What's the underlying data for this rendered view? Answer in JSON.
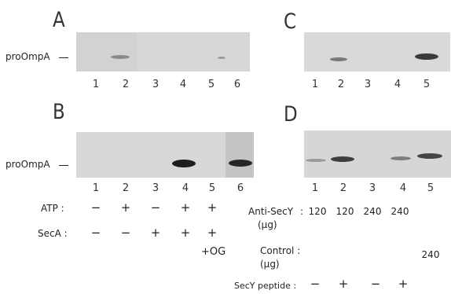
{
  "panels": {
    "A": {
      "label": "A",
      "lanes": [
        "1",
        "2",
        "3",
        "4",
        "5",
        "6"
      ]
    },
    "B": {
      "label": "B",
      "lanes": [
        "1",
        "2",
        "3",
        "4",
        "5",
        "6"
      ]
    },
    "C": {
      "label": "C",
      "lanes": [
        "1",
        "2",
        "3",
        "4",
        "5"
      ]
    },
    "D": {
      "label": "D",
      "lanes": [
        "1",
        "2",
        "3",
        "4",
        "5"
      ]
    }
  },
  "band_label": "proOmpA",
  "conditions_B": {
    "atp": {
      "label": "ATP :",
      "marks": [
        "−",
        "+",
        "−",
        "+",
        "+"
      ]
    },
    "seca": {
      "label": "SecA :",
      "marks": [
        "−",
        "−",
        "+",
        "+",
        "+"
      ],
      "extra": "+OG"
    }
  },
  "conditions_D": {
    "antisecy": {
      "label": "Anti-SecY",
      "unit": "(μg)",
      "values": [
        "120",
        "120",
        "240",
        "240",
        ""
      ]
    },
    "control": {
      "label": "Control :",
      "unit": "(μg)",
      "values": [
        "",
        "",
        "",
        "",
        "240"
      ]
    },
    "peptide": {
      "label": "SecY peptide :",
      "marks": [
        "−",
        "+",
        "−",
        "+"
      ]
    }
  }
}
